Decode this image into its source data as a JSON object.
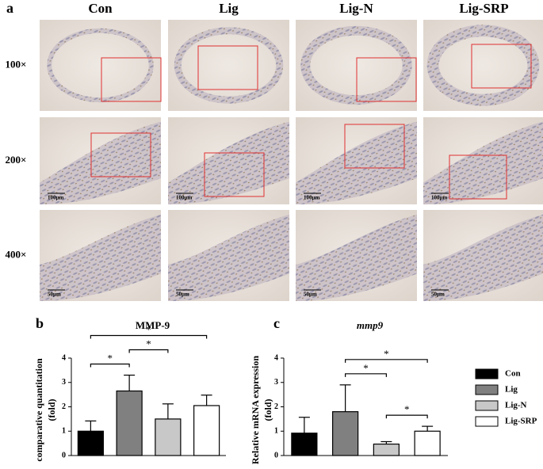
{
  "panel_a": {
    "letter": "a",
    "columns": [
      "Con",
      "Lig",
      "Lig-N",
      "Lig-SRP"
    ],
    "rows": [
      {
        "label": "100×"
      },
      {
        "label": "200×",
        "scale": "100μm"
      },
      {
        "label": "400×",
        "scale": "50μm"
      }
    ]
  },
  "legend": {
    "names": [
      "Con",
      "Lig",
      "Lig-N",
      "Lig-SRP"
    ],
    "colors": [
      "#000000",
      "#808080",
      "#c8c8c8",
      "#ffffff"
    ]
  },
  "chart_data": [
    {
      "type": "bar",
      "letter": "b",
      "title": "MMP-9",
      "ylabel": [
        "comparative quantitation",
        "(fold)"
      ],
      "categories": [
        null,
        null,
        null,
        null
      ],
      "values": [
        1.0,
        2.65,
        1.5,
        2.05
      ],
      "errors": [
        0.42,
        0.65,
        0.62,
        0.43
      ],
      "ylim": [
        0,
        4
      ],
      "yticks": [
        0,
        1,
        2,
        3,
        4
      ],
      "annotations": [
        {
          "label": "*",
          "pair": [
            0,
            1
          ]
        },
        {
          "label": "*",
          "pair": [
            1,
            2
          ]
        },
        {
          "label": "*",
          "pair": [
            0,
            3
          ]
        }
      ]
    },
    {
      "type": "bar",
      "letter": "c",
      "title": "mmp9",
      "title_style": "italic",
      "ylabel": [
        "Relative mRNA expression",
        "(fold)"
      ],
      "categories": [
        null,
        null,
        null,
        null
      ],
      "values": [
        0.92,
        1.8,
        0.47,
        1.0
      ],
      "errors": [
        0.65,
        1.1,
        0.1,
        0.2
      ],
      "ylim": [
        0,
        4
      ],
      "yticks": [
        0,
        1,
        2,
        3,
        4
      ],
      "annotations": [
        {
          "label": "*",
          "pair": [
            1,
            2
          ]
        },
        {
          "label": "*",
          "pair": [
            1,
            3
          ]
        },
        {
          "label": "*",
          "pair": [
            2,
            3
          ]
        }
      ]
    }
  ]
}
